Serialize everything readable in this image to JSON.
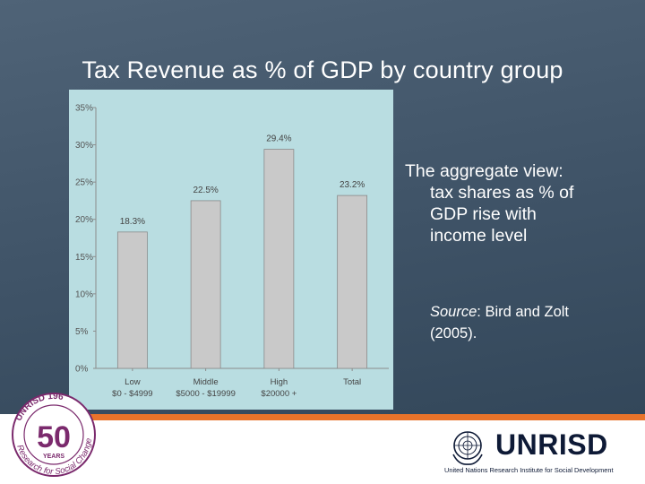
{
  "slide": {
    "title": "Tax Revenue as % of GDP by country group",
    "body_line1": "The aggregate view:",
    "body_line2": "tax shares as % of",
    "body_line3": "GDP rise with",
    "body_line4": "income level",
    "source_label": "Source",
    "source_rest": ": Bird and Zolt",
    "source_line2": "(2005)."
  },
  "chart_data": {
    "type": "bar",
    "title": "",
    "xlabel": "",
    "ylabel": "",
    "categories": [
      {
        "line1": "Low",
        "line2": "$0 - $4999"
      },
      {
        "line1": "Middle",
        "line2": "$5000 - $19999"
      },
      {
        "line1": "High",
        "line2": "$20000 +"
      },
      {
        "line1": "Total",
        "line2": ""
      }
    ],
    "values": [
      18.3,
      22.5,
      29.4,
      23.2
    ],
    "data_labels": [
      "18.3%",
      "22.5%",
      "29.4%",
      "23.2%"
    ],
    "ylim": [
      0,
      35
    ],
    "yticks": [
      0,
      5,
      10,
      15,
      20,
      25,
      30,
      35
    ],
    "ytick_labels": [
      "0%",
      "5%",
      "10%",
      "15%",
      "20%",
      "25%",
      "30%",
      "35%"
    ],
    "grid": false,
    "colors": {
      "bar": "#c9c9c9",
      "bar_edge": "#8a8a8a",
      "background": "#b9dde1",
      "axis": "#8c8c8c"
    }
  },
  "footer": {
    "badge_top": "UNRISD 196",
    "badge_number": "50",
    "badge_years": "YEARS",
    "badge_arc": "Research for Social Change",
    "brand": "UNRISD",
    "brand_sub": "United Nations Research Institute for Social Development",
    "accent_color": "#e8732a"
  }
}
